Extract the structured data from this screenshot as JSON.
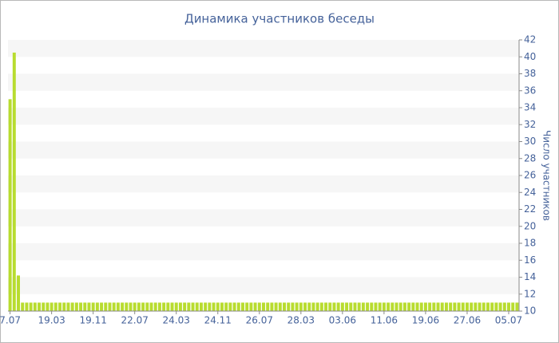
{
  "chart_data": {
    "type": "bar",
    "title": "Динамика участников беседы",
    "y_label": "Число участников",
    "categories": [
      "7.07",
      null,
      null,
      null,
      null,
      null,
      null,
      null,
      null,
      null,
      "19.03",
      null,
      null,
      null,
      null,
      null,
      null,
      null,
      null,
      null,
      "19.11",
      null,
      null,
      null,
      null,
      null,
      null,
      null,
      null,
      null,
      "22.07",
      null,
      null,
      null,
      null,
      null,
      null,
      null,
      null,
      null,
      "24.03",
      null,
      null,
      null,
      null,
      null,
      null,
      null,
      null,
      null,
      "24.11",
      null,
      null,
      null,
      null,
      null,
      null,
      null,
      null,
      null,
      "26.07",
      null,
      null,
      null,
      null,
      null,
      null,
      null,
      null,
      null,
      "28.03",
      null,
      null,
      null,
      null,
      null,
      null,
      null,
      null,
      null,
      "03.06",
      null,
      null,
      null,
      null,
      null,
      null,
      null,
      null,
      null,
      "11.06",
      null,
      null,
      null,
      null,
      null,
      null,
      null,
      null,
      null,
      "19.06",
      null,
      null,
      null,
      null,
      null,
      null,
      null,
      null,
      null,
      "27.06",
      null,
      null,
      null,
      null,
      null,
      null,
      null,
      null,
      null,
      "05.07",
      null,
      null
    ],
    "values": [
      35,
      40.5,
      14.2,
      11,
      11,
      11,
      11,
      11,
      11,
      11,
      11,
      11,
      11,
      11,
      11,
      11,
      11,
      11,
      11,
      11,
      11,
      11,
      11,
      11,
      11,
      11,
      11,
      11,
      11,
      11,
      11,
      11,
      11,
      11,
      11,
      11,
      11,
      11,
      11,
      11,
      11,
      11,
      11,
      11,
      11,
      11,
      11,
      11,
      11,
      11,
      11,
      11,
      11,
      11,
      11,
      11,
      11,
      11,
      11,
      11,
      11,
      11,
      11,
      11,
      11,
      11,
      11,
      11,
      11,
      11,
      11,
      11,
      11,
      11,
      11,
      11,
      11,
      11,
      11,
      11,
      11,
      11,
      11,
      11,
      11,
      11,
      11,
      11,
      11,
      11,
      11,
      11,
      11,
      11,
      11,
      11,
      11,
      11,
      11,
      11,
      11,
      11,
      11,
      11,
      11,
      11,
      11,
      11,
      11,
      11,
      11,
      11,
      11,
      11,
      11,
      11,
      11,
      11,
      11,
      11,
      11,
      11,
      11
    ],
    "color": "#b8dc2f",
    "ylim": [
      10,
      42
    ],
    "yticks": [
      10,
      12,
      14,
      16,
      18,
      20,
      22,
      24,
      26,
      28,
      30,
      32,
      34,
      36,
      38,
      40,
      42
    ],
    "y_axis_side": "right",
    "grid": true
  }
}
